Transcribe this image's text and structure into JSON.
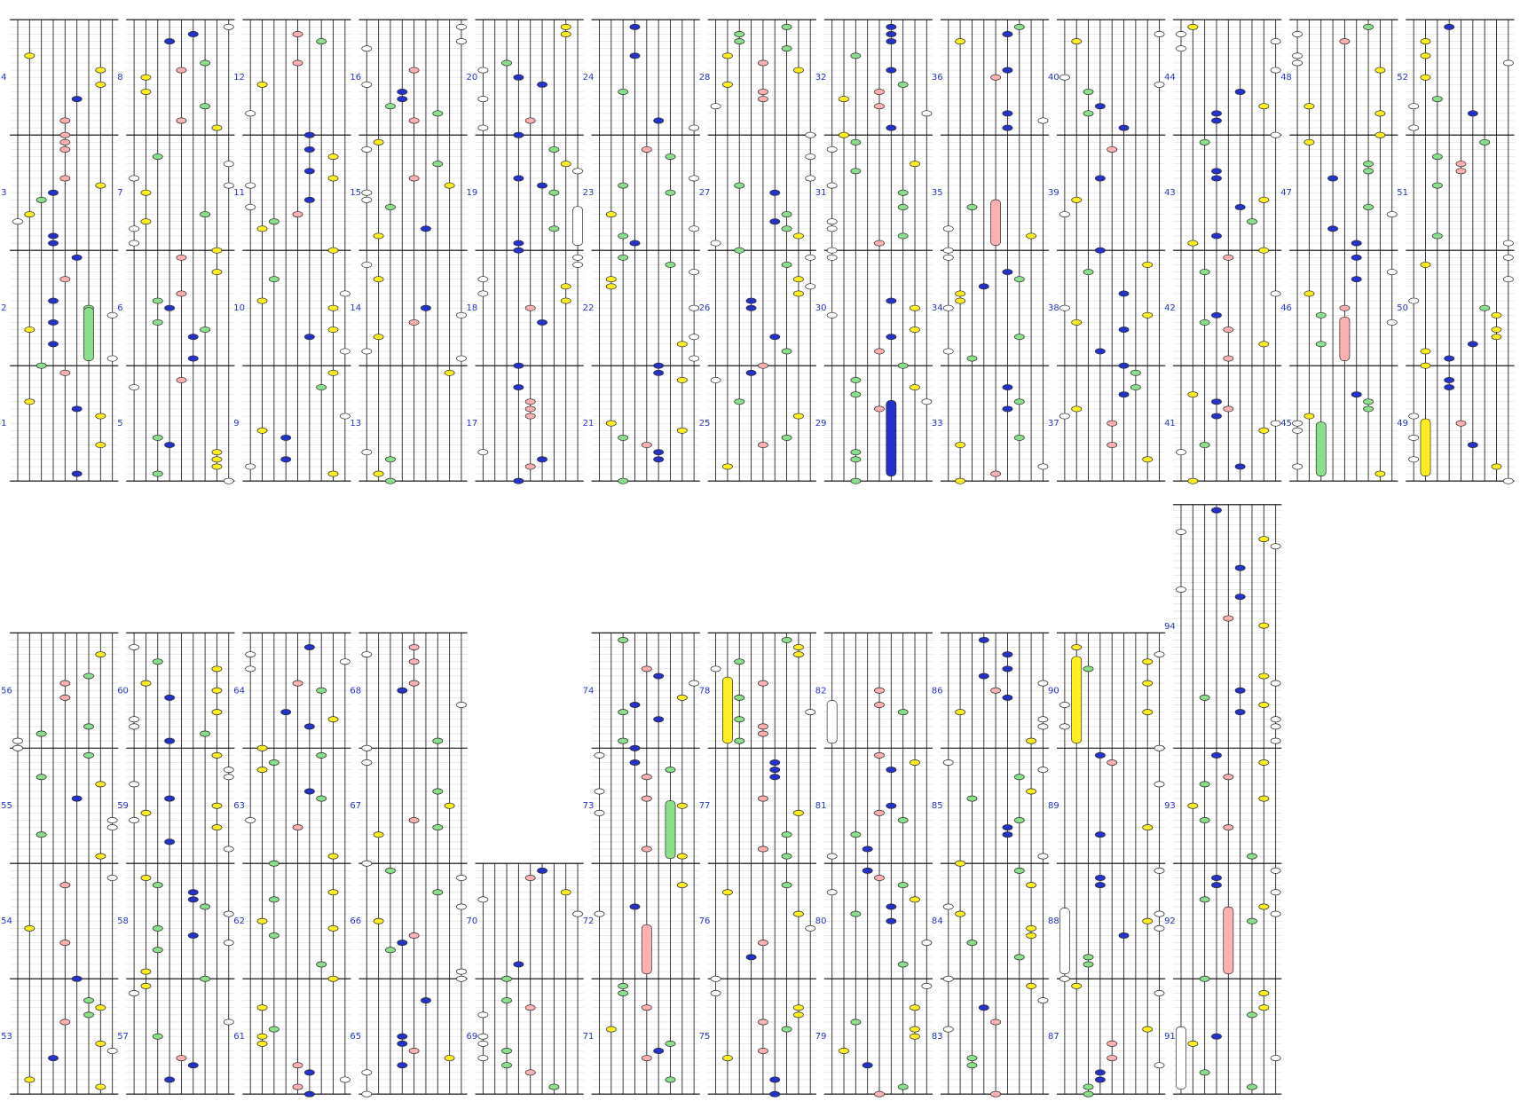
{
  "measures": [
    1,
    2,
    3,
    4,
    5,
    6,
    7,
    8,
    9,
    10,
    11,
    12,
    13,
    14,
    15,
    16,
    17,
    18,
    19,
    20,
    21,
    22,
    23,
    24,
    25,
    26,
    27,
    28,
    29,
    30,
    31,
    32,
    33,
    34,
    35,
    36,
    37,
    38,
    39,
    40,
    41,
    42,
    43,
    44,
    45,
    46,
    47,
    48,
    49,
    50,
    51,
    52,
    53,
    54,
    55,
    56,
    57,
    58,
    59,
    60,
    61,
    62,
    63,
    64,
    65,
    66,
    67,
    68,
    69,
    70,
    71,
    72,
    73,
    74,
    75,
    76,
    77,
    78,
    79,
    80,
    81,
    82,
    83,
    84,
    85,
    86,
    87,
    88,
    89,
    90,
    91,
    92,
    93,
    94
  ]
}
